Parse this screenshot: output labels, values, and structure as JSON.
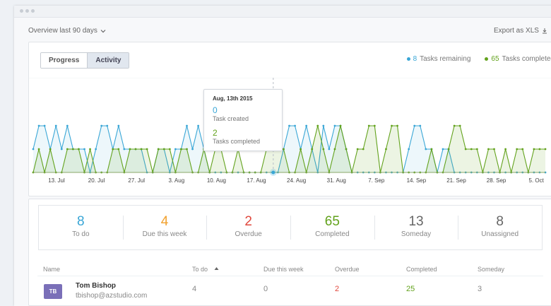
{
  "toolbar": {
    "overview_label": "Overview last 90 days",
    "export_label": "Export as XLS"
  },
  "tabs": [
    {
      "label": "Progress",
      "active": false
    },
    {
      "label": "Activity",
      "active": true
    }
  ],
  "legend": {
    "remaining_count": "8",
    "remaining_label": "Tasks remaining",
    "completed_count": "65",
    "completed_label": "Tasks completed"
  },
  "colors": {
    "remaining": "#39a6d6",
    "completed": "#62a21c",
    "due": "#f2a12e",
    "overdue": "#e0483d",
    "muted": "#666666"
  },
  "chart_data": {
    "type": "area",
    "x_tick_labels": [
      "13. Jul",
      "20. Jul",
      "27. Jul",
      "3. Aug",
      "10. Aug",
      "17. Aug",
      "24. Aug",
      "31. Aug",
      "7. Sep",
      "14. Sep",
      "21. Sep",
      "28. Sep",
      "5. Oct"
    ],
    "ylim": [
      0,
      2
    ],
    "grid": false,
    "series": [
      {
        "name": "Task created",
        "values": [
          1,
          2,
          2,
          1,
          2,
          1,
          2,
          1,
          1,
          1,
          0,
          1,
          2,
          2,
          1,
          2,
          1,
          1,
          1,
          1,
          0,
          0,
          1,
          1,
          0,
          1,
          1,
          2,
          1,
          2,
          1,
          0,
          0,
          0,
          0,
          0,
          0,
          0,
          0,
          0,
          0,
          0,
          0,
          0,
          1,
          2,
          2,
          1,
          2,
          1,
          0,
          2,
          1,
          2,
          2,
          1,
          0,
          0,
          0,
          0,
          0,
          0,
          0,
          0,
          0,
          0,
          1,
          2,
          2,
          1,
          1,
          0,
          1,
          1,
          0,
          0,
          0,
          0,
          0,
          0,
          0,
          0,
          0,
          0,
          0,
          0,
          0,
          0,
          0,
          0,
          0
        ]
      },
      {
        "name": "Tasks completed",
        "values": [
          0,
          1,
          0,
          1,
          0,
          0,
          1,
          1,
          1,
          0,
          1,
          0,
          0,
          0,
          1,
          1,
          0,
          1,
          1,
          1,
          1,
          0,
          1,
          1,
          1,
          0,
          1,
          1,
          0,
          0,
          1,
          0,
          1,
          1,
          0,
          0,
          1,
          0,
          0,
          0,
          0,
          1,
          1,
          1,
          1,
          0,
          0,
          1,
          0,
          1,
          2,
          1,
          0,
          1,
          2,
          1,
          0,
          1,
          1,
          2,
          2,
          0,
          1,
          2,
          2,
          0,
          0,
          0,
          0,
          0,
          1,
          0,
          0,
          1,
          2,
          2,
          1,
          1,
          1,
          0,
          1,
          1,
          0,
          1,
          0,
          1,
          1,
          0,
          1,
          1,
          1
        ]
      }
    ]
  },
  "tooltip": {
    "date": "Aug, 13th 2015",
    "created_value": "0",
    "created_label": "Task created",
    "completed_value": "2",
    "completed_label": "Tasks completed"
  },
  "stats": [
    {
      "value": "8",
      "label": "To do",
      "color": "#39a6d6"
    },
    {
      "value": "4",
      "label": "Due this week",
      "color": "#f2a12e"
    },
    {
      "value": "2",
      "label": "Overdue",
      "color": "#e0483d"
    },
    {
      "value": "65",
      "label": "Completed",
      "color": "#62a21c"
    },
    {
      "value": "13",
      "label": "Someday",
      "color": "#666666"
    },
    {
      "value": "8",
      "label": "Unassigned",
      "color": "#666666"
    }
  ],
  "table": {
    "headers": {
      "name": "Name",
      "todo": "To do",
      "due": "Due this week",
      "overdue": "Overdue",
      "completed": "Completed",
      "someday": "Someday"
    },
    "rows": [
      {
        "initials": "TB",
        "name": "Tom Bishop",
        "email": "tbishop@azstudio.com",
        "todo": "4",
        "due": "0",
        "overdue": "2",
        "completed": "25",
        "someday": "3"
      }
    ]
  }
}
